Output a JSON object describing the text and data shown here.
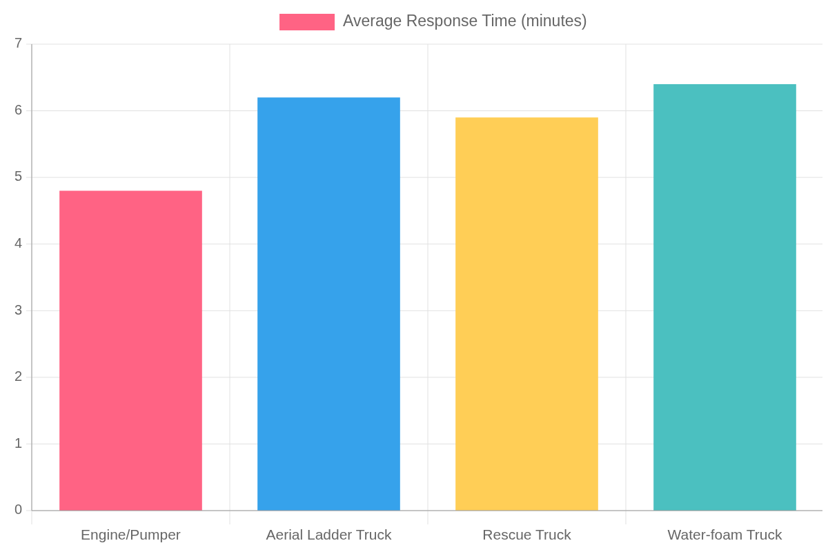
{
  "chart_data": {
    "type": "bar",
    "categories": [
      "Engine/Pumper",
      "Aerial Ladder Truck",
      "Rescue Truck",
      "Water-foam Truck"
    ],
    "series": [
      {
        "name": "Average Response Time (minutes)",
        "color": "#ff6384",
        "colors": [
          "#ff6384",
          "#36a2eb",
          "#ffce56",
          "#4bc0c0"
        ],
        "values": [
          4.8,
          6.2,
          5.9,
          6.4
        ]
      }
    ],
    "ylim": [
      0,
      7
    ],
    "yticks": [
      0,
      1,
      2,
      3,
      4,
      5,
      6,
      7
    ],
    "grid": true,
    "legend": "top"
  }
}
